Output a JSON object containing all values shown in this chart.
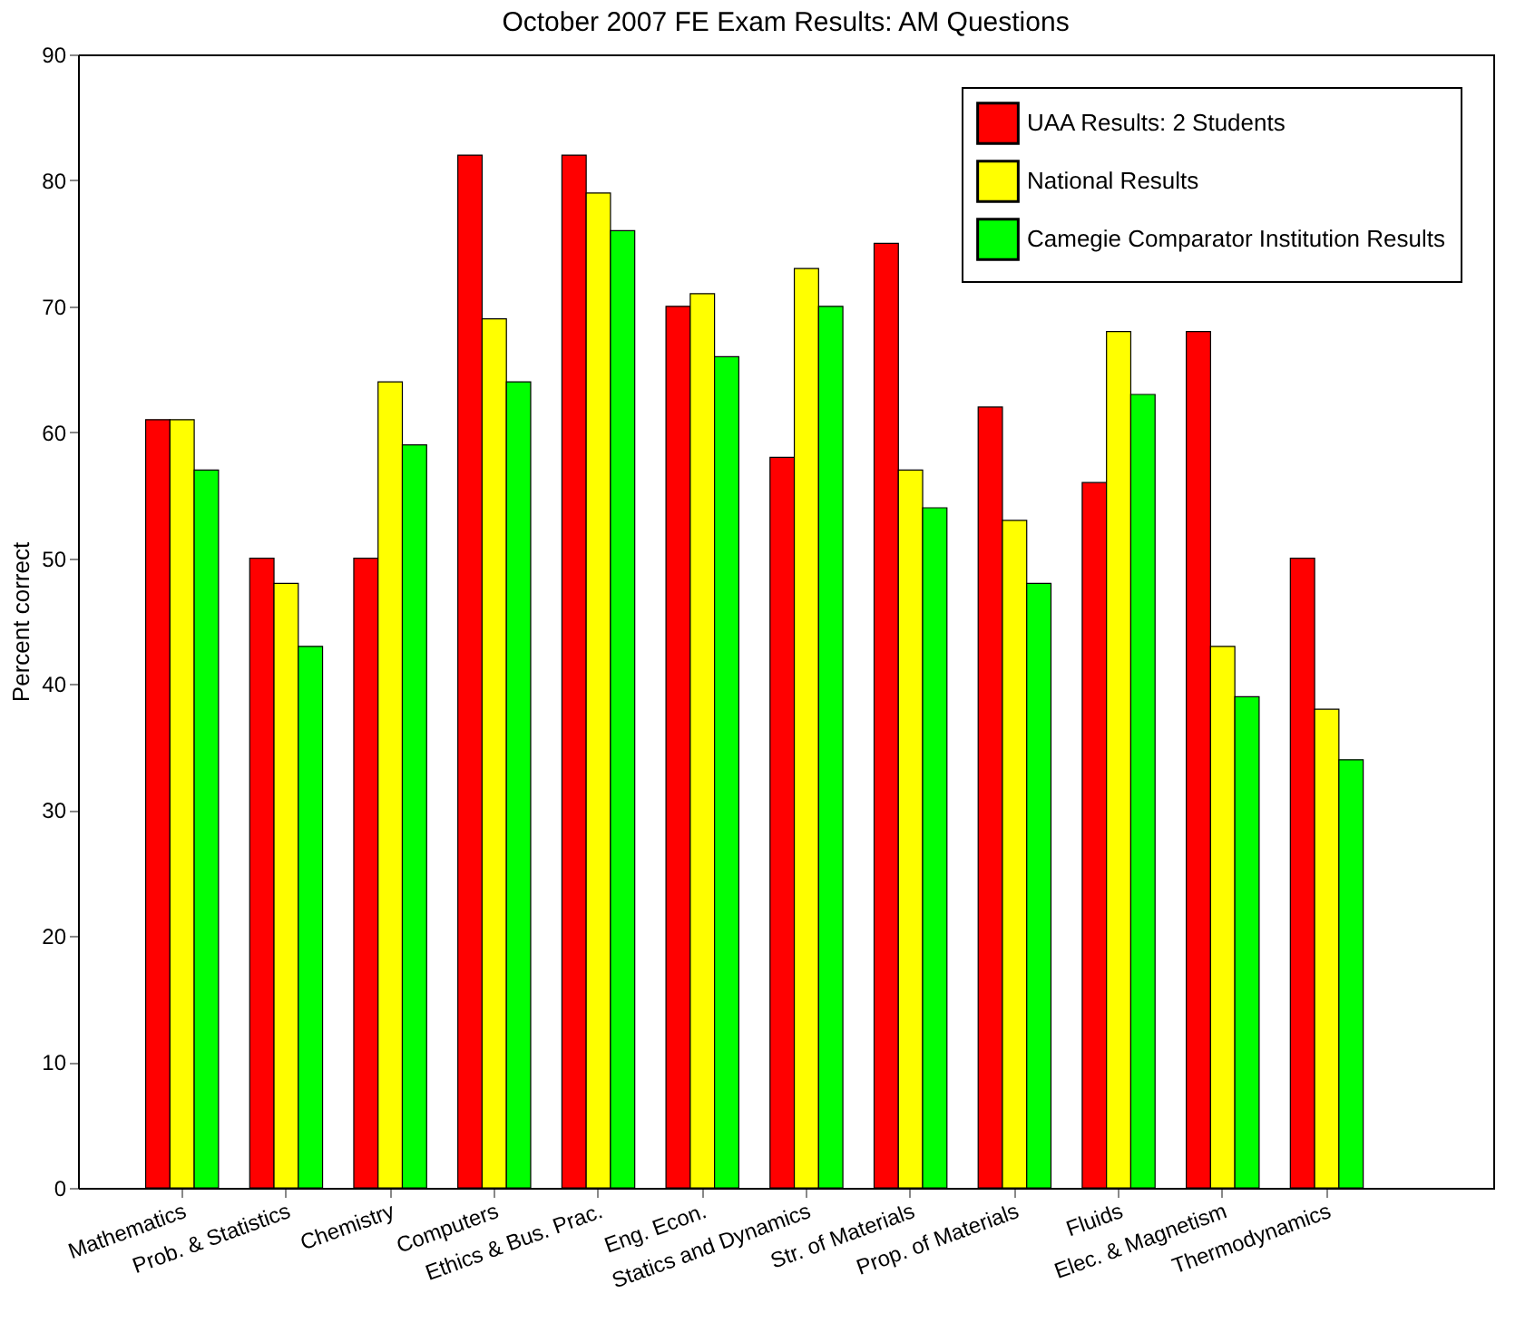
{
  "chart_data": {
    "type": "bar",
    "title": "October 2007 FE Exam Results: AM Questions",
    "ylabel": "Percent correct",
    "categories": [
      "Mathematics",
      "Prob. & Statistics",
      "Chemistry",
      "Computers",
      "Ethics & Bus. Prac.",
      "Eng. Econ.",
      "Statics and Dynamics",
      "Str. of Materials",
      "Prop. of Materials",
      "Fluids",
      "Elec. & Magnetism",
      "Thermodynamics"
    ],
    "series": [
      {
        "name": "UAA Results: 2 Students",
        "color": "#ff0000",
        "values": [
          61,
          50,
          50,
          82,
          82,
          70,
          58,
          75,
          62,
          56,
          68,
          50
        ]
      },
      {
        "name": "National Results",
        "color": "#ffff00",
        "values": [
          61,
          48,
          64,
          69,
          79,
          71,
          73,
          57,
          53,
          68,
          43,
          38
        ]
      },
      {
        "name": "Camegie Comparator Institution Results",
        "color": "#00ff00",
        "values": [
          57,
          43,
          59,
          64,
          76,
          66,
          70,
          54,
          48,
          63,
          39,
          34
        ]
      }
    ],
    "ylim": [
      0,
      90
    ],
    "yticks": [
      0,
      10,
      20,
      30,
      40,
      50,
      60,
      70,
      80,
      90
    ],
    "grid": false,
    "legend": "top right"
  }
}
